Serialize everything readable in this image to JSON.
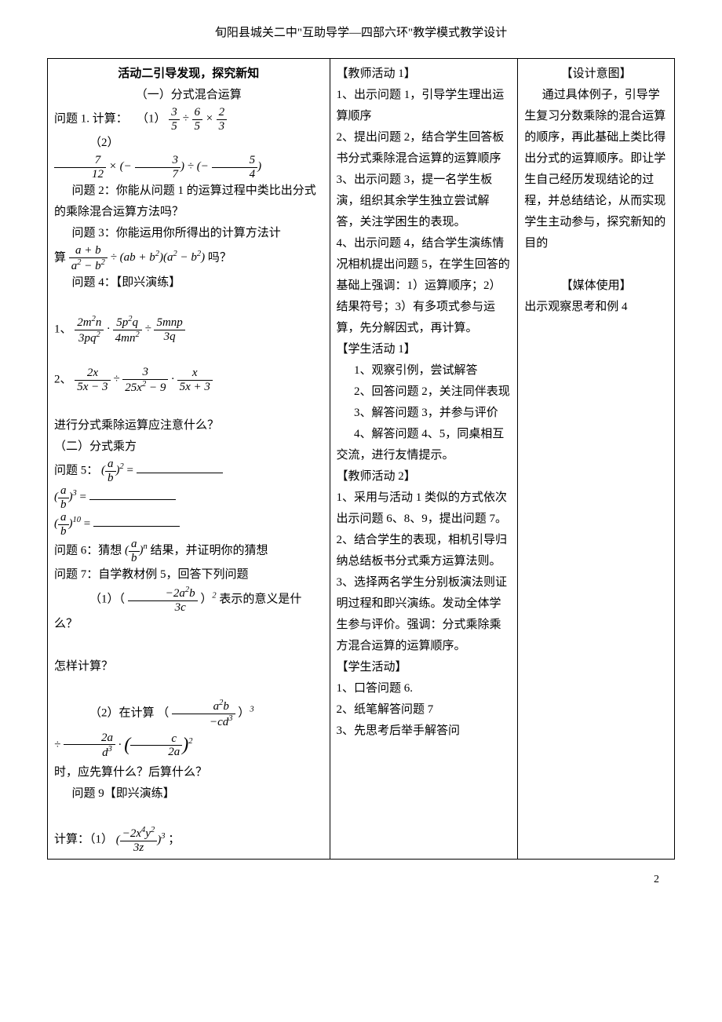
{
  "header": "旬阳县城关二中\"互助导学—四部六环\"教学模式教学设计",
  "page_number": "2",
  "left": {
    "activity_title": "活动二引导发现，探究新知",
    "section1_title": "（一）分式混合运算",
    "q1_label": "问题 1. 计算：",
    "q1_sub1": "（1）",
    "q1_sub2": "（2）",
    "q2": "问题 2：你能从问题 1 的运算过程中类比出分式的乘除混合运算方法吗？",
    "q3": "问题 3：你能运用你所得出的计算方法计",
    "q3_prefix": "算",
    "q3_suffix": " 吗？",
    "q4_title": "问题 4：【即兴演练】",
    "item1_label": "1、",
    "item2_label": "2、",
    "note_line": "进行分式乘除运算应注意什么？",
    "section2_title": "（二）分式乘方",
    "q5_label": "问题 5：",
    "eq_equals": " = ",
    "q6_label": "问题 6：猜想",
    "q6_tail": "结果，并证明你的猜想",
    "q7": "问题 7：自学教材例 5，回答下列问题",
    "q7_1_prefix": "（1）（",
    "q7_1_mid": "）",
    "q7_1_suffix": " 表示的意义是什么？",
    "how_calc": "怎样计算？",
    "q7_2_prefix": "（2）在计算 （",
    "q7_2_mid": "）",
    "when_line": "时，应先算什么？后算什么？",
    "q9_title": "问题 9【即兴演练】",
    "calc_label": "计算：（1）",
    "semicolon": "；"
  },
  "mid": {
    "t1_title": "【教师活动 1】",
    "t1_1": "1、出示问题 1，引导学生理出运算顺序",
    "t1_2": "2、提出问题 2，结合学生回答板书分式乘除混合运算的运算顺序",
    "t1_3": "3、出示问题 3，提一名学生板演，组织其余学生独立尝试解答，关注学困生的表现。",
    "t1_4": "4、出示问题 4，结合学生演练情况相机提出问题 5，在学生回答的基础上强调：1）运算顺序；2）结果符号；3）有多项式参与运算，先分解因式，再计算。",
    "s1_title": "【学生活动 1】",
    "s1_1": "1、观察引例，尝试解答",
    "s1_2": "2、回答问题 2，关注同伴表现",
    "s1_3": "3、解答问题 3，并参与评价",
    "s1_4": "4、解答问题 4、5，同桌相互交流，进行友情提示。",
    "t2_title": "【教师活动 2】",
    "t2_1": "1、采用与活动 1 类似的方式依次出示问题 6、8、9，提出问题 7。",
    "t2_2": "2、结合学生的表现，相机引导归纳总结板书分式乘方运算法则。",
    "t2_3": "3、选择两名学生分别板演法则证明过程和即兴演练。发动全体学生参与评价。强调：分式乘除乘方混合运算的运算顺序。",
    "s2_title": "【学生活动】",
    "s2_1": "1、口答问题 6.",
    "s2_2": "2、纸笔解答问题 7",
    "s2_3": "3、先思考后举手解答问"
  },
  "right": {
    "design_title": "【设计意图】",
    "design_body": "通过具体例子，引导学生复习分数乘除的混合运算的顺序，再此基础上类比得出分式的运算顺序。即让学生自己经历发现结论的过程，并总结结论，从而实现学生主动参与，探究新知的目的",
    "media_title": "【媒体使用】",
    "media_body": "出示观察思考和例 4"
  }
}
